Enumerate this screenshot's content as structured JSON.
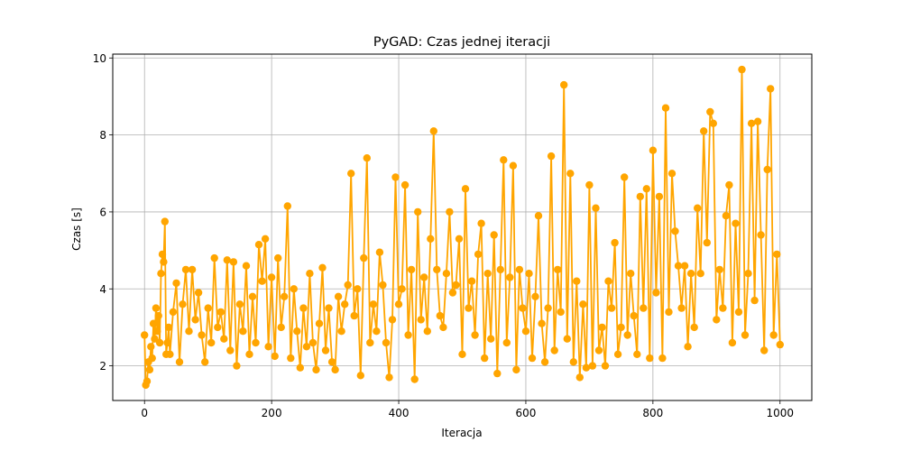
{
  "chart_data": {
    "type": "line",
    "title": "PyGAD: Czas jednej iteracji",
    "xlabel": "Iteracja",
    "ylabel": "Czas [s]",
    "xlim": [
      -50,
      1050
    ],
    "ylim": [
      1.1,
      10.1
    ],
    "xticks": [
      0,
      200,
      400,
      600,
      800,
      1000
    ],
    "yticks": [
      2,
      4,
      6,
      8,
      10
    ],
    "grid": true,
    "series": [
      {
        "color": "#ffa500",
        "marker": "circle",
        "x": [
          0,
          2,
          4,
          6,
          8,
          10,
          12,
          14,
          16,
          18,
          20,
          22,
          24,
          26,
          28,
          30,
          32,
          34,
          36,
          38,
          40,
          45,
          50,
          55,
          60,
          65,
          70,
          75,
          80,
          85,
          90,
          95,
          100,
          105,
          110,
          115,
          120,
          125,
          130,
          135,
          140,
          145,
          150,
          155,
          160,
          165,
          170,
          175,
          180,
          185,
          190,
          195,
          200,
          205,
          210,
          215,
          220,
          225,
          230,
          235,
          240,
          245,
          250,
          255,
          260,
          265,
          270,
          275,
          280,
          285,
          290,
          295,
          300,
          305,
          310,
          315,
          320,
          325,
          330,
          335,
          340,
          345,
          350,
          355,
          360,
          365,
          370,
          375,
          380,
          385,
          390,
          395,
          400,
          405,
          410,
          415,
          420,
          425,
          430,
          435,
          440,
          445,
          450,
          455,
          460,
          465,
          470,
          475,
          480,
          485,
          490,
          495,
          500,
          505,
          510,
          515,
          520,
          525,
          530,
          535,
          540,
          545,
          550,
          555,
          560,
          565,
          570,
          575,
          580,
          585,
          590,
          595,
          600,
          605,
          610,
          615,
          620,
          625,
          630,
          635,
          640,
          645,
          650,
          655,
          660,
          665,
          670,
          675,
          680,
          685,
          690,
          695,
          700,
          705,
          710,
          715,
          720,
          725,
          730,
          735,
          740,
          745,
          750,
          755,
          760,
          765,
          770,
          775,
          780,
          785,
          790,
          795,
          800,
          805,
          810,
          815,
          820,
          825,
          830,
          835,
          840,
          845,
          850,
          855,
          860,
          865,
          870,
          875,
          880,
          885,
          890,
          895,
          900,
          905,
          910,
          915,
          920,
          925,
          930,
          935,
          940,
          945,
          950,
          955,
          960,
          965,
          970,
          975,
          980,
          985,
          990,
          995,
          1000
        ],
        "values": [
          2.8,
          1.5,
          1.6,
          2.1,
          1.9,
          2.5,
          2.2,
          3.1,
          2.7,
          3.5,
          2.9,
          3.3,
          2.6,
          4.4,
          4.9,
          4.7,
          5.75,
          2.3,
          2.6,
          3.0,
          2.3,
          3.4,
          4.15,
          2.1,
          3.6,
          4.5,
          2.9,
          4.5,
          3.2,
          3.9,
          2.8,
          2.1,
          3.5,
          2.6,
          4.8,
          3.0,
          3.4,
          2.7,
          4.75,
          2.4,
          4.7,
          2.0,
          3.6,
          2.9,
          4.6,
          2.3,
          3.8,
          2.6,
          5.15,
          4.2,
          5.3,
          2.5,
          4.3,
          2.25,
          4.8,
          3.0,
          3.8,
          6.15,
          2.2,
          4.0,
          2.9,
          1.95,
          3.5,
          2.5,
          4.4,
          2.6,
          1.9,
          3.1,
          4.55,
          2.4,
          3.5,
          2.1,
          1.9,
          3.8,
          2.9,
          3.6,
          4.1,
          7.0,
          3.3,
          4.0,
          1.75,
          4.8,
          7.4,
          2.6,
          3.6,
          2.9,
          4.95,
          4.1,
          2.6,
          1.7,
          3.2,
          6.9,
          3.6,
          4.0,
          6.7,
          2.8,
          4.5,
          1.65,
          6.0,
          3.2,
          4.3,
          2.9,
          5.3,
          8.1,
          4.5,
          3.3,
          3.0,
          4.4,
          6.0,
          3.9,
          4.1,
          5.3,
          2.3,
          6.6,
          3.5,
          4.2,
          2.8,
          4.9,
          5.7,
          2.2,
          4.4,
          2.7,
          5.4,
          1.8,
          4.5,
          7.35,
          2.6,
          4.3,
          7.2,
          1.9,
          4.5,
          3.5,
          2.9,
          4.4,
          2.2,
          3.8,
          5.9,
          3.1,
          2.1,
          3.5,
          7.45,
          2.4,
          4.5,
          3.4,
          9.3,
          2.7,
          7.0,
          2.1,
          4.2,
          1.7,
          3.6,
          1.95,
          6.7,
          2.0,
          6.1,
          2.4,
          3.0,
          2.0,
          4.2,
          3.5,
          5.2,
          2.3,
          3.0,
          6.9,
          2.8,
          4.4,
          3.3,
          2.3,
          6.4,
          3.5,
          6.6,
          2.2,
          7.6,
          3.9,
          6.4,
          2.2,
          8.7,
          3.4,
          7.0,
          5.5,
          4.6,
          3.5,
          4.6,
          2.5,
          4.4,
          3.0,
          6.1,
          4.4,
          8.1,
          5.2,
          8.6,
          8.3,
          3.2,
          4.5,
          3.5,
          5.9,
          6.7,
          2.6,
          5.7,
          3.4,
          9.7,
          2.8,
          4.4,
          8.3,
          3.7,
          8.35,
          5.4,
          2.4,
          7.1,
          9.2,
          2.8,
          4.9,
          2.55
        ]
      }
    ]
  }
}
